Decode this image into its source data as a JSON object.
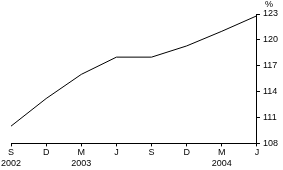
{
  "chart_data": {
    "type": "line",
    "ylabel": "%",
    "categories": [
      "S 2002",
      "D",
      "M 2003",
      "J",
      "S",
      "D",
      "M 2004",
      "J"
    ],
    "values": [
      110,
      113.2,
      116,
      118,
      118,
      119.3,
      121,
      122.8
    ],
    "color": "#000000",
    "ylim": [
      108,
      123
    ],
    "yticks": [
      108,
      111,
      114,
      117,
      120,
      123
    ],
    "grid": false
  }
}
